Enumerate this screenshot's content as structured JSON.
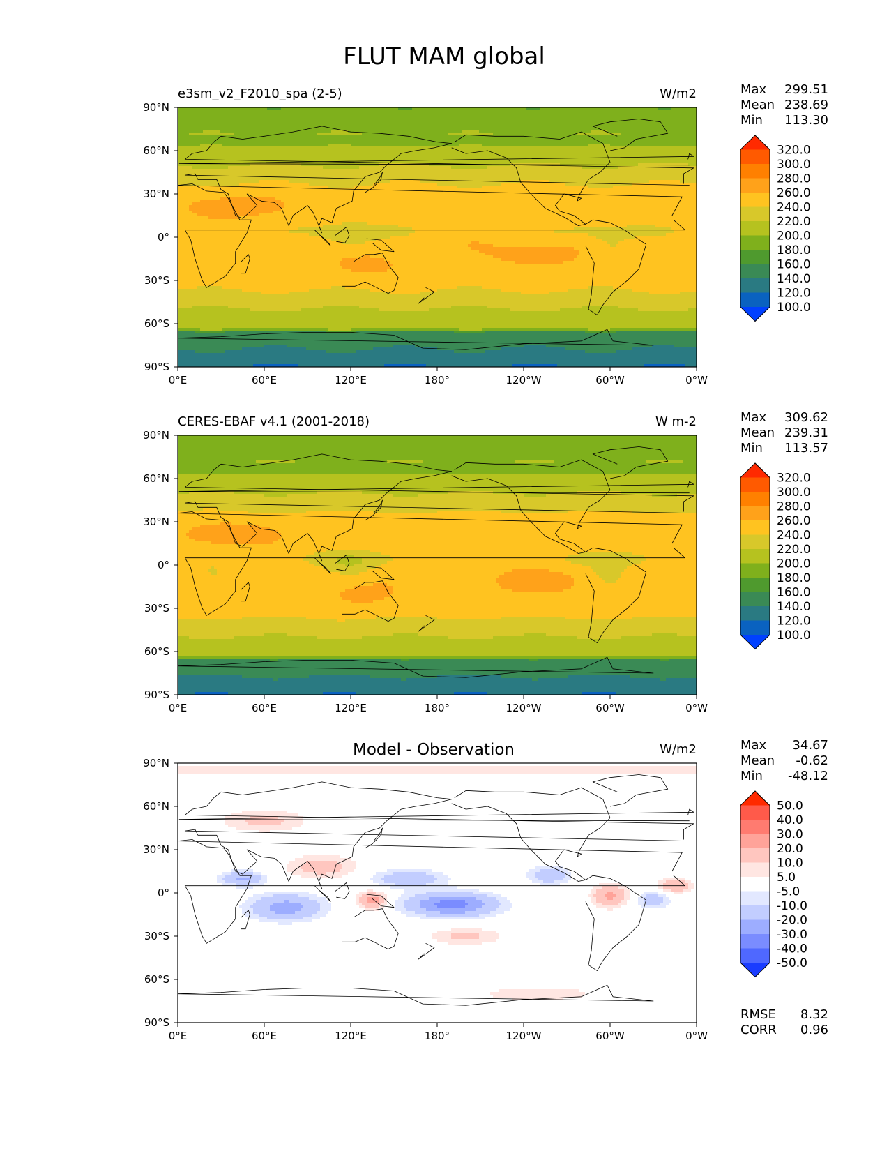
{
  "figure": {
    "title": "FLUT MAM global"
  },
  "panels": [
    {
      "left_title": "e3sm_v2_F2010_spa (2-5)",
      "center_title": "",
      "units": "W/m2",
      "stats": [
        {
          "label": "Max",
          "value": "299.51"
        },
        {
          "label": "Mean",
          "value": "238.69"
        },
        {
          "label": "Min",
          "value": "113.30"
        }
      ]
    },
    {
      "left_title": "CERES-EBAF v4.1 (2001-2018)",
      "center_title": "",
      "units": "W m-2",
      "stats": [
        {
          "label": "Max",
          "value": "309.62"
        },
        {
          "label": "Mean",
          "value": "239.31"
        },
        {
          "label": "Min",
          "value": "113.57"
        }
      ]
    },
    {
      "left_title": "",
      "center_title": "Model - Observation",
      "units": "W/m2",
      "stats": [
        {
          "label": "Max",
          "value": "34.67"
        },
        {
          "label": "Mean",
          "value": "-0.62"
        },
        {
          "label": "Min",
          "value": "-48.12"
        }
      ],
      "extra_stats": [
        {
          "label": "RMSE",
          "value": "8.32"
        },
        {
          "label": "CORR",
          "value": "0.96"
        }
      ]
    }
  ],
  "colorbars": {
    "field": {
      "labels": [
        "320.0",
        "300.0",
        "280.0",
        "260.0",
        "240.0",
        "220.0",
        "200.0",
        "180.0",
        "160.0",
        "140.0",
        "120.0",
        "100.0"
      ],
      "colors": [
        "#ff2a00",
        "#ff5a00",
        "#ff8000",
        "#ffa21a",
        "#ffc320",
        "#d8c82a",
        "#b6c21f",
        "#7fb01c",
        "#4f9a2e",
        "#3a8a55",
        "#2a7a82",
        "#0a62c0",
        "#0040ff"
      ]
    },
    "diff": {
      "labels": [
        "50.0",
        "40.0",
        "30.0",
        "20.0",
        "10.0",
        "5.0",
        "-5.0",
        "-10.0",
        "-20.0",
        "-30.0",
        "-40.0",
        "-50.0"
      ],
      "colors": [
        "#ff2a00",
        "#ff5a4a",
        "#ff7b70",
        "#ffa399",
        "#ffc6bf",
        "#ffe6e2",
        "#ffffff",
        "#e2e8ff",
        "#c2cdff",
        "#9dadff",
        "#7a8cff",
        "#4f68ff",
        "#1a3cff"
      ]
    }
  },
  "chart_data": [
    {
      "type": "heatmap",
      "title": "e3sm_v2_F2010_spa (2-5)",
      "units": "W/m2",
      "x_ticks": [
        "0°E",
        "60°E",
        "120°E",
        "180°",
        "120°W",
        "60°W",
        "0°W"
      ],
      "y_ticks": [
        "90°N",
        "60°N",
        "30°N",
        "0°",
        "30°S",
        "60°S",
        "90°S"
      ],
      "lon_range": [
        0,
        360
      ],
      "lat_range": [
        -90,
        90
      ],
      "levels": [
        100,
        120,
        140,
        160,
        180,
        200,
        220,
        240,
        260,
        280,
        300,
        320
      ],
      "max": 299.51,
      "mean": 238.69,
      "min": 113.3
    },
    {
      "type": "heatmap",
      "title": "CERES-EBAF v4.1 (2001-2018)",
      "units": "W m-2",
      "x_ticks": [
        "0°E",
        "60°E",
        "120°E",
        "180°",
        "120°W",
        "60°W",
        "0°W"
      ],
      "y_ticks": [
        "90°N",
        "60°N",
        "30°N",
        "0°",
        "30°S",
        "60°S",
        "90°S"
      ],
      "lon_range": [
        0,
        360
      ],
      "lat_range": [
        -90,
        90
      ],
      "levels": [
        100,
        120,
        140,
        160,
        180,
        200,
        220,
        240,
        260,
        280,
        300,
        320
      ],
      "max": 309.62,
      "mean": 239.31,
      "min": 113.57
    },
    {
      "type": "heatmap",
      "title": "Model - Observation",
      "units": "W/m2",
      "x_ticks": [
        "0°E",
        "60°E",
        "120°E",
        "180°",
        "120°W",
        "60°W",
        "0°W"
      ],
      "y_ticks": [
        "90°N",
        "60°N",
        "30°N",
        "0°",
        "30°S",
        "60°S",
        "90°S"
      ],
      "lon_range": [
        0,
        360
      ],
      "lat_range": [
        -90,
        90
      ],
      "levels": [
        -50,
        -40,
        -30,
        -20,
        -10,
        -5,
        5,
        10,
        20,
        30,
        40,
        50
      ],
      "max": 34.67,
      "mean": -0.62,
      "min": -48.12,
      "rmse": 8.32,
      "corr": 0.96
    }
  ]
}
